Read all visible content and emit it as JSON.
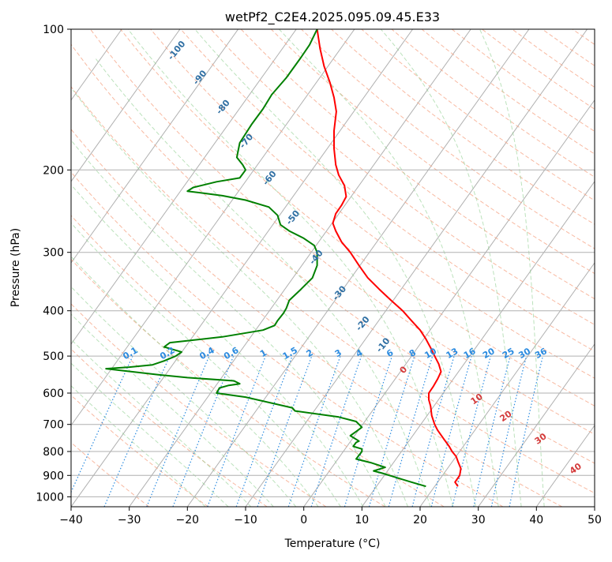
{
  "chart_data": {
    "type": "line",
    "title": "wetPf2_C2E4.2025.095.09.45.E33",
    "xlabel": "Temperature (°C)",
    "ylabel": "Pressure (hPa)",
    "xlim": [
      -40,
      50
    ],
    "ylim": [
      1050,
      100
    ],
    "y_scale": "log",
    "grid": true,
    "x_ticks": [
      "−40",
      "−30",
      "−20",
      "−10",
      "0",
      "10",
      "20",
      "30",
      "40",
      "50"
    ],
    "x_tick_values": [
      -40,
      -30,
      -20,
      -10,
      0,
      10,
      20,
      30,
      40,
      50
    ],
    "y_ticks": [
      "100",
      "200",
      "300",
      "400",
      "500",
      "600",
      "700",
      "800",
      "900",
      "1000"
    ],
    "y_tick_values": [
      100,
      200,
      300,
      400,
      500,
      600,
      700,
      800,
      900,
      1000
    ],
    "series": [
      {
        "color": "#ff0000",
        "points": [
          [
            26.5,
            950
          ],
          [
            26.0,
            930
          ],
          [
            26.8,
            900
          ],
          [
            27.0,
            870
          ],
          [
            26.5,
            840
          ],
          [
            26.2,
            820
          ],
          [
            25.5,
            800
          ],
          [
            25.0,
            780
          ],
          [
            24.0,
            750
          ],
          [
            23.0,
            720
          ],
          [
            22.5,
            700
          ],
          [
            22.0,
            670
          ],
          [
            21.8,
            640
          ],
          [
            21.5,
            620
          ],
          [
            21.5,
            600
          ],
          [
            22.3,
            580
          ],
          [
            23.0,
            560
          ],
          [
            23.6,
            540
          ],
          [
            23.2,
            520
          ],
          [
            22.5,
            500
          ],
          [
            21.8,
            480
          ],
          [
            21.0,
            460
          ],
          [
            20.0,
            440
          ],
          [
            18.5,
            420
          ],
          [
            17.0,
            400
          ],
          [
            15.0,
            380
          ],
          [
            13.0,
            360
          ],
          [
            11.0,
            340
          ],
          [
            9.5,
            320
          ],
          [
            8.0,
            300
          ],
          [
            6.5,
            285
          ],
          [
            5.5,
            270
          ],
          [
            5.0,
            260
          ],
          [
            5.5,
            248
          ],
          [
            6.5,
            238
          ],
          [
            7.3,
            228
          ],
          [
            7.0,
            216
          ],
          [
            6.0,
            205
          ],
          [
            5.5,
            195
          ],
          [
            5.2,
            180
          ],
          [
            5.2,
            165
          ],
          [
            5.6,
            150
          ],
          [
            5.2,
            140
          ],
          [
            4.5,
            130
          ],
          [
            3.5,
            120
          ],
          [
            2.8,
            110
          ],
          [
            2.3,
            100
          ]
        ]
      },
      {
        "color": "#008000",
        "points": [
          [
            21.0,
            950
          ],
          [
            18.5,
            930
          ],
          [
            16.0,
            910
          ],
          [
            13.5,
            890
          ],
          [
            12.0,
            880
          ],
          [
            14.0,
            865
          ],
          [
            11.5,
            845
          ],
          [
            9.0,
            830
          ],
          [
            10.0,
            800
          ],
          [
            10.0,
            790
          ],
          [
            8.5,
            780
          ],
          [
            9.0,
            765
          ],
          [
            9.5,
            760
          ],
          [
            8.0,
            740
          ],
          [
            9.0,
            725
          ],
          [
            10.0,
            710
          ],
          [
            9.0,
            690
          ],
          [
            6.0,
            675
          ],
          [
            -1.5,
            655
          ],
          [
            -2.0,
            645
          ],
          [
            -10.0,
            612
          ],
          [
            -15.0,
            600
          ],
          [
            -14.5,
            585
          ],
          [
            -13.0,
            578
          ],
          [
            -11.0,
            573
          ],
          [
            -12.0,
            565
          ],
          [
            -20.0,
            556
          ],
          [
            -25.0,
            548
          ],
          [
            -34.0,
            532
          ],
          [
            -30.0,
            528
          ],
          [
            -26.0,
            522
          ],
          [
            -24.0,
            512
          ],
          [
            -22.0,
            500
          ],
          [
            -21.0,
            490
          ],
          [
            -24.0,
            478
          ],
          [
            -23.0,
            468
          ],
          [
            -14.0,
            455
          ],
          [
            -7.0,
            440
          ],
          [
            -5.0,
            430
          ],
          [
            -4.5,
            420
          ],
          [
            -3.5,
            405
          ],
          [
            -3.0,
            395
          ],
          [
            -2.5,
            380
          ],
          [
            -0.5,
            360
          ],
          [
            1.5,
            340
          ],
          [
            2.3,
            320
          ],
          [
            2.3,
            300
          ],
          [
            1.8,
            290
          ],
          [
            0.0,
            280
          ],
          [
            -2.5,
            270
          ],
          [
            -4.0,
            262
          ],
          [
            -4.5,
            250
          ],
          [
            -6.0,
            240
          ],
          [
            -10.0,
            232
          ],
          [
            -14.0,
            227
          ],
          [
            -17.5,
            224
          ],
          [
            -20.0,
            222
          ],
          [
            -19.0,
            218
          ],
          [
            -15.0,
            212
          ],
          [
            -11.0,
            208
          ],
          [
            -10.0,
            200
          ],
          [
            -10.5,
            195
          ],
          [
            -11.5,
            188
          ],
          [
            -11.0,
            175
          ],
          [
            -9.0,
            160
          ],
          [
            -7.0,
            148
          ],
          [
            -5.5,
            138
          ],
          [
            -3.0,
            127
          ],
          [
            -0.5,
            115
          ],
          [
            1.0,
            108
          ],
          [
            2.3,
            100
          ]
        ]
      }
    ],
    "dry_adiabat_labels": [
      "-100",
      "-90",
      "-80",
      "-70",
      "-60",
      "-50",
      "-40",
      "-30",
      "-20",
      "-10",
      "0"
    ],
    "moist_adiabat_labels": [
      "10",
      "20",
      "30",
      "40"
    ],
    "mixing_ratio_labels": [
      "0.1",
      "0.2",
      "0.4",
      "0.6",
      "1",
      "1.5",
      "2",
      "3",
      "4",
      "6",
      "8",
      "10",
      "13",
      "16",
      "20",
      "25",
      "30",
      "36"
    ]
  }
}
